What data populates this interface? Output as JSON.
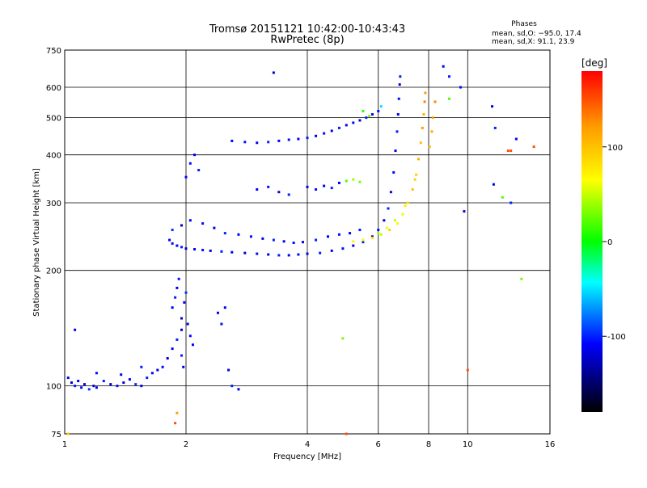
{
  "chart_data": {
    "type": "scatter",
    "title": "Tromsø 20151121 10:42:00-10:43:43",
    "subtitle": "RwPretec (8p)",
    "xlabel": "Frequency [MHz]",
    "ylabel": "Stationary phase Virtual Height [km]",
    "x_scale": "log",
    "y_scale": "log",
    "xlim": [
      1,
      16
    ],
    "ylim": [
      75,
      750
    ],
    "x_ticks": [
      1,
      2,
      4,
      6,
      8,
      10,
      16
    ],
    "x_tick_labels": [
      "1",
      "2",
      "4",
      "6",
      "8",
      "10",
      "16"
    ],
    "y_ticks": [
      75,
      100,
      200,
      300,
      400,
      500,
      600,
      750
    ],
    "y_tick_labels": [
      "75",
      "100",
      "200",
      "300",
      "400",
      "500",
      "600",
      "750"
    ],
    "grid": true,
    "phase_stats": {
      "heading": "Phases",
      "line_o": "mean, sd,O: −95.0, 17.4",
      "line_x": "mean, sd,X:  91.1, 23.9"
    },
    "colorbar": {
      "label": "[deg]",
      "min": -180,
      "max": 180,
      "ticks": [
        100,
        0,
        -100
      ],
      "tick_labels": [
        "100",
        "0",
        "-100"
      ],
      "colors": [
        "#ff0000",
        "#ff9900",
        "#ffff00",
        "#00ff00",
        "#00ffff",
        "#0000ff",
        "#000000"
      ]
    },
    "series": [
      {
        "trace": "low-echoes",
        "points": [
          [
            1.02,
            105,
            -110
          ],
          [
            1.04,
            102,
            -120
          ],
          [
            1.06,
            100,
            -100
          ],
          [
            1.08,
            103,
            -115
          ],
          [
            1.1,
            99,
            -105
          ],
          [
            1.12,
            101,
            -110
          ],
          [
            1.15,
            98,
            -95
          ],
          [
            1.18,
            100,
            -120
          ],
          [
            1.2,
            99,
            -110
          ],
          [
            1.25,
            103,
            -100
          ],
          [
            1.3,
            101,
            -115
          ],
          [
            1.35,
            100,
            -105
          ],
          [
            1.4,
            102,
            -120
          ],
          [
            1.45,
            104,
            -110
          ],
          [
            1.5,
            101,
            -95
          ],
          [
            1.55,
            100,
            -115
          ],
          [
            1.6,
            105,
            -100
          ],
          [
            1.65,
            108,
            -110
          ],
          [
            1.7,
            110,
            -120
          ],
          [
            1.75,
            112,
            -105
          ],
          [
            1.8,
            118,
            -115
          ],
          [
            1.85,
            125,
            -110
          ],
          [
            1.9,
            132,
            -100
          ],
          [
            1.95,
            140,
            -120
          ],
          [
            1.06,
            140,
            -115
          ],
          [
            1.2,
            108,
            -105
          ],
          [
            1.38,
            107,
            -110
          ],
          [
            1.55,
            112,
            -100
          ]
        ]
      },
      {
        "trace": "e-region-vertical",
        "points": [
          [
            1.85,
            160,
            -110
          ],
          [
            1.88,
            170,
            -100
          ],
          [
            1.9,
            180,
            -115
          ],
          [
            1.92,
            190,
            -105
          ],
          [
            1.95,
            150,
            -120
          ],
          [
            1.98,
            165,
            -110
          ],
          [
            2.0,
            175,
            -95
          ],
          [
            2.02,
            145,
            -115
          ],
          [
            2.05,
            135,
            -105
          ],
          [
            2.08,
            128,
            -110
          ],
          [
            1.95,
            120,
            -100
          ],
          [
            1.97,
            112,
            -120
          ],
          [
            2.4,
            155,
            -110
          ],
          [
            2.45,
            145,
            -105
          ],
          [
            2.5,
            160,
            -115
          ],
          [
            2.6,
            100,
            -100
          ],
          [
            2.7,
            98,
            -110
          ],
          [
            2.55,
            110,
            -120
          ]
        ]
      },
      {
        "trace": "f-region-o",
        "points": [
          [
            1.82,
            240,
            -110
          ],
          [
            1.85,
            235,
            -105
          ],
          [
            1.9,
            232,
            -115
          ],
          [
            1.95,
            230,
            -100
          ],
          [
            2.0,
            228,
            -120
          ],
          [
            2.1,
            227,
            -110
          ],
          [
            2.2,
            226,
            -105
          ],
          [
            2.3,
            225,
            -115
          ],
          [
            2.45,
            224,
            -100
          ],
          [
            2.6,
            223,
            -110
          ],
          [
            2.8,
            222,
            -120
          ],
          [
            3.0,
            221,
            -105
          ],
          [
            3.2,
            220,
            -115
          ],
          [
            3.4,
            219,
            -100
          ],
          [
            3.6,
            219,
            -110
          ],
          [
            3.8,
            220,
            -105
          ],
          [
            4.0,
            221,
            -115
          ],
          [
            4.3,
            222,
            -100
          ],
          [
            4.6,
            225,
            -110
          ],
          [
            4.9,
            228,
            -105
          ],
          [
            5.2,
            232,
            -115
          ],
          [
            5.5,
            237,
            -100
          ],
          [
            5.8,
            245,
            -110
          ],
          [
            6.0,
            255,
            -105
          ],
          [
            6.2,
            270,
            -115
          ],
          [
            6.35,
            290,
            -100
          ],
          [
            6.45,
            320,
            -110
          ],
          [
            6.55,
            360,
            -105
          ],
          [
            6.62,
            410,
            -115
          ],
          [
            6.68,
            460,
            -100
          ],
          [
            6.72,
            510,
            -110
          ],
          [
            6.75,
            560,
            -105
          ],
          [
            6.78,
            610,
            -115
          ],
          [
            6.8,
            640,
            -100
          ],
          [
            1.85,
            255,
            -95
          ],
          [
            1.95,
            262,
            -120
          ],
          [
            2.05,
            270,
            -110
          ],
          [
            2.2,
            265,
            -105
          ],
          [
            2.35,
            258,
            -115
          ],
          [
            2.5,
            250,
            -100
          ],
          [
            2.7,
            248,
            -110
          ],
          [
            2.9,
            245,
            -105
          ],
          [
            3.1,
            242,
            -115
          ],
          [
            3.3,
            240,
            -100
          ],
          [
            3.5,
            238,
            -110
          ],
          [
            3.7,
            236,
            -105
          ],
          [
            3.9,
            237,
            -115
          ],
          [
            4.2,
            240,
            -100
          ],
          [
            4.5,
            245,
            -110
          ],
          [
            4.8,
            248,
            -105
          ],
          [
            5.1,
            250,
            -115
          ],
          [
            5.4,
            255,
            -100
          ],
          [
            2.0,
            350,
            -110
          ],
          [
            2.05,
            380,
            -105
          ],
          [
            2.1,
            400,
            -115
          ],
          [
            2.15,
            365,
            -100
          ]
        ]
      },
      {
        "trace": "f-region-x",
        "points": [
          [
            5.2,
            238,
            70
          ],
          [
            5.5,
            240,
            60
          ],
          [
            5.8,
            243,
            80
          ],
          [
            6.1,
            248,
            50
          ],
          [
            6.4,
            255,
            90
          ],
          [
            6.7,
            265,
            70
          ],
          [
            6.9,
            280,
            60
          ],
          [
            7.1,
            300,
            80
          ],
          [
            7.3,
            325,
            100
          ],
          [
            7.45,
            355,
            90
          ],
          [
            7.55,
            390,
            110
          ],
          [
            7.65,
            430,
            100
          ],
          [
            7.72,
            470,
            120
          ],
          [
            7.78,
            510,
            110
          ],
          [
            7.82,
            550,
            130
          ],
          [
            7.85,
            580,
            120
          ],
          [
            6.0,
            250,
            40
          ],
          [
            6.3,
            258,
            60
          ],
          [
            6.6,
            270,
            50
          ],
          [
            7.0,
            295,
            70
          ],
          [
            7.4,
            345,
            90
          ],
          [
            8.05,
            420,
            100
          ],
          [
            8.15,
            460,
            110
          ],
          [
            8.2,
            500,
            120
          ],
          [
            8.3,
            550,
            130
          ]
        ]
      },
      {
        "trace": "multi-hop",
        "points": [
          [
            2.6,
            435,
            -110
          ],
          [
            2.8,
            432,
            -105
          ],
          [
            3.0,
            430,
            -115
          ],
          [
            3.2,
            432,
            -100
          ],
          [
            3.4,
            435,
            -110
          ],
          [
            3.6,
            438,
            -105
          ],
          [
            3.8,
            440,
            -115
          ],
          [
            4.0,
            443,
            -100
          ],
          [
            4.2,
            448,
            -110
          ],
          [
            4.4,
            455,
            -105
          ],
          [
            4.6,
            462,
            -115
          ],
          [
            4.8,
            470,
            -100
          ],
          [
            5.0,
            478,
            -110
          ],
          [
            5.2,
            485,
            -105
          ],
          [
            5.4,
            492,
            -115
          ],
          [
            5.6,
            500,
            -100
          ],
          [
            5.8,
            510,
            -110
          ],
          [
            6.0,
            520,
            -105
          ],
          [
            3.0,
            325,
            -110
          ],
          [
            3.2,
            330,
            -105
          ],
          [
            3.4,
            320,
            -115
          ],
          [
            3.6,
            315,
            -100
          ],
          [
            4.0,
            330,
            -110
          ],
          [
            4.2,
            325,
            -105
          ],
          [
            4.4,
            332,
            -115
          ],
          [
            4.6,
            328,
            -100
          ],
          [
            4.8,
            338,
            -110
          ],
          [
            5.0,
            342,
            20
          ],
          [
            5.2,
            345,
            40
          ],
          [
            5.4,
            340,
            30
          ],
          [
            5.5,
            520,
            10
          ],
          [
            5.7,
            505,
            30
          ],
          [
            6.1,
            535,
            -50
          ]
        ]
      },
      {
        "trace": "scattered",
        "points": [
          [
            3.3,
            655,
            -120
          ],
          [
            8.7,
            680,
            -110
          ],
          [
            9.0,
            640,
            -100
          ],
          [
            9.6,
            600,
            -105
          ],
          [
            11.5,
            535,
            -115
          ],
          [
            11.7,
            470,
            -100
          ],
          [
            12.6,
            410,
            150
          ],
          [
            12.8,
            410,
            150
          ],
          [
            13.2,
            440,
            -110
          ],
          [
            14.6,
            420,
            150
          ],
          [
            11.6,
            335,
            -110
          ],
          [
            12.2,
            310,
            20
          ],
          [
            12.8,
            300,
            -100
          ],
          [
            13.6,
            190,
            30
          ],
          [
            9.8,
            285,
            -110
          ],
          [
            10.0,
            110,
            150
          ],
          [
            4.9,
            133,
            30
          ],
          [
            5.0,
            75,
            150
          ],
          [
            1.02,
            75,
            100
          ],
          [
            1.9,
            85,
            120
          ],
          [
            1.88,
            80,
            150
          ],
          [
            9.0,
            560,
            20
          ]
        ]
      }
    ]
  }
}
